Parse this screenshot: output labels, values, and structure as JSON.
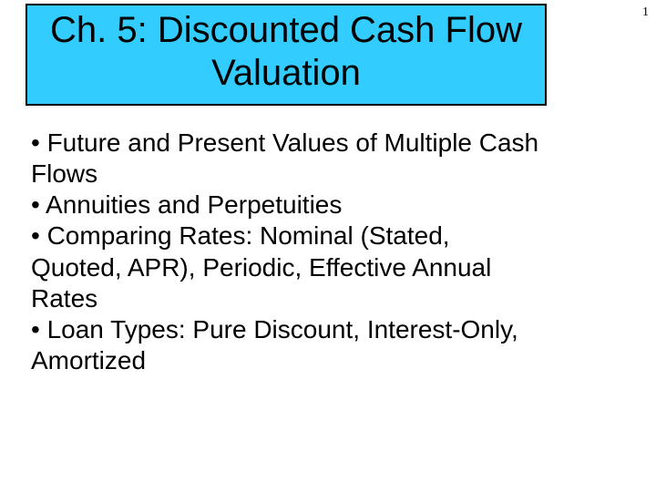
{
  "page_number": "1",
  "title": "Ch. 5: Discounted Cash Flow Valuation",
  "title_box": {
    "background_color": "#33ccff",
    "border_color": "#000000",
    "text_color": "#000000",
    "font_size_pt": 30
  },
  "body_text_color": "#000000",
  "body_font_size_pt": 21,
  "background_color": "#ffffff",
  "bullets": [
    "• Future and Present Values of Multiple Cash Flows",
    "• Annuities and Perpetuities",
    "• Comparing Rates: Nominal (Stated, Quoted, APR), Periodic, Effective Annual Rates",
    "• Loan Types:  Pure Discount, Interest-Only, Amortized"
  ]
}
